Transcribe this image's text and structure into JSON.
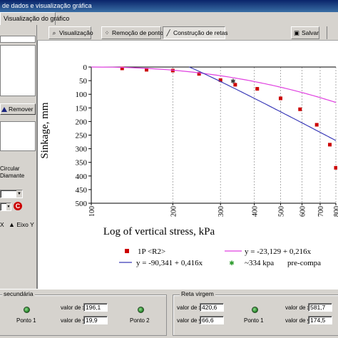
{
  "window": {
    "title": "de dados e visualização gráfica"
  },
  "tabs": [
    {
      "label": "Visualização do gráfico"
    }
  ],
  "left_panel": {
    "remove_label": "Remover",
    "circle_label": "Circular",
    "diamond_label": "Diamante",
    "axis_y_label": "Eixo Y",
    "colors": {
      "remove_icon": "#1a237e",
      "refresh_icon": "#cc0000"
    }
  },
  "toolbar": {
    "visualize_label": "Visualização",
    "remove_points_label": "Remoção de pontos",
    "build_lines_label": "Construção de retas",
    "save_label": "Salvar"
  },
  "chart_data": {
    "type": "scatter",
    "xlabel": "Log of vertical stress, kPa",
    "ylabel": "Sinkage, mm",
    "x_scale": "log",
    "xlim": [
      100,
      800
    ],
    "ylim": [
      0,
      500
    ],
    "y_inverted": true,
    "x_ticks": [
      100,
      200,
      300,
      400,
      500,
      600,
      700,
      800
    ],
    "x_tick_labels": [
      "100",
      "200",
      "300",
      "400",
      "500",
      "600",
      "700",
      "800"
    ],
    "y_ticks": [
      0,
      50,
      100,
      150,
      200,
      250,
      300,
      350,
      400,
      450,
      500
    ],
    "y_tick_labels": [
      "0",
      "50",
      "100",
      "150",
      "200",
      "250",
      "300",
      "350",
      "400",
      "450",
      "500"
    ],
    "x_grid": true,
    "series": [
      {
        "name": "1P <R2>",
        "kind": "markers",
        "color": "#cc0000",
        "x": [
          130,
          160,
          200,
          250,
          300,
          340,
          410,
          500,
          590,
          680,
          760,
          800
        ],
        "y": [
          5,
          10,
          13,
          25,
          48,
          65,
          80,
          115,
          155,
          212,
          285,
          370
        ]
      },
      {
        "name": "y = -23,129 + 0,216x",
        "kind": "line",
        "color": "#e040e0",
        "x": [
          100,
          800
        ],
        "y": [
          0,
          130
        ]
      },
      {
        "name": "y = -90,341 + 0,416x",
        "kind": "line",
        "color": "#3a3ab8",
        "x": [
          250,
          300,
          400,
          500,
          600,
          700,
          800
        ],
        "y": [
          0,
          35,
          90,
          135,
          178,
          225,
          262
        ]
      },
      {
        "name": "~334 kpa",
        "kind": "marker",
        "color": "#2a9a2a",
        "x": [
          334
        ],
        "y": [
          53
        ]
      }
    ],
    "legend_extra_text": "pre-compa",
    "legend_position": "bottom"
  },
  "bottom": {
    "group1_title": "secundária",
    "group2_title": "Reta virgem",
    "x_label": "valor de x",
    "y_label": "valor de y",
    "point1_label": "Ponto 1",
    "point2_label": "Ponto 2",
    "g1_x": "196,1",
    "g1_y": "19,9",
    "g2_p1_x": "420,6",
    "g2_p1_y": "66,6",
    "g2_p2_x": "581,7",
    "g2_p2_y": "174,5"
  }
}
